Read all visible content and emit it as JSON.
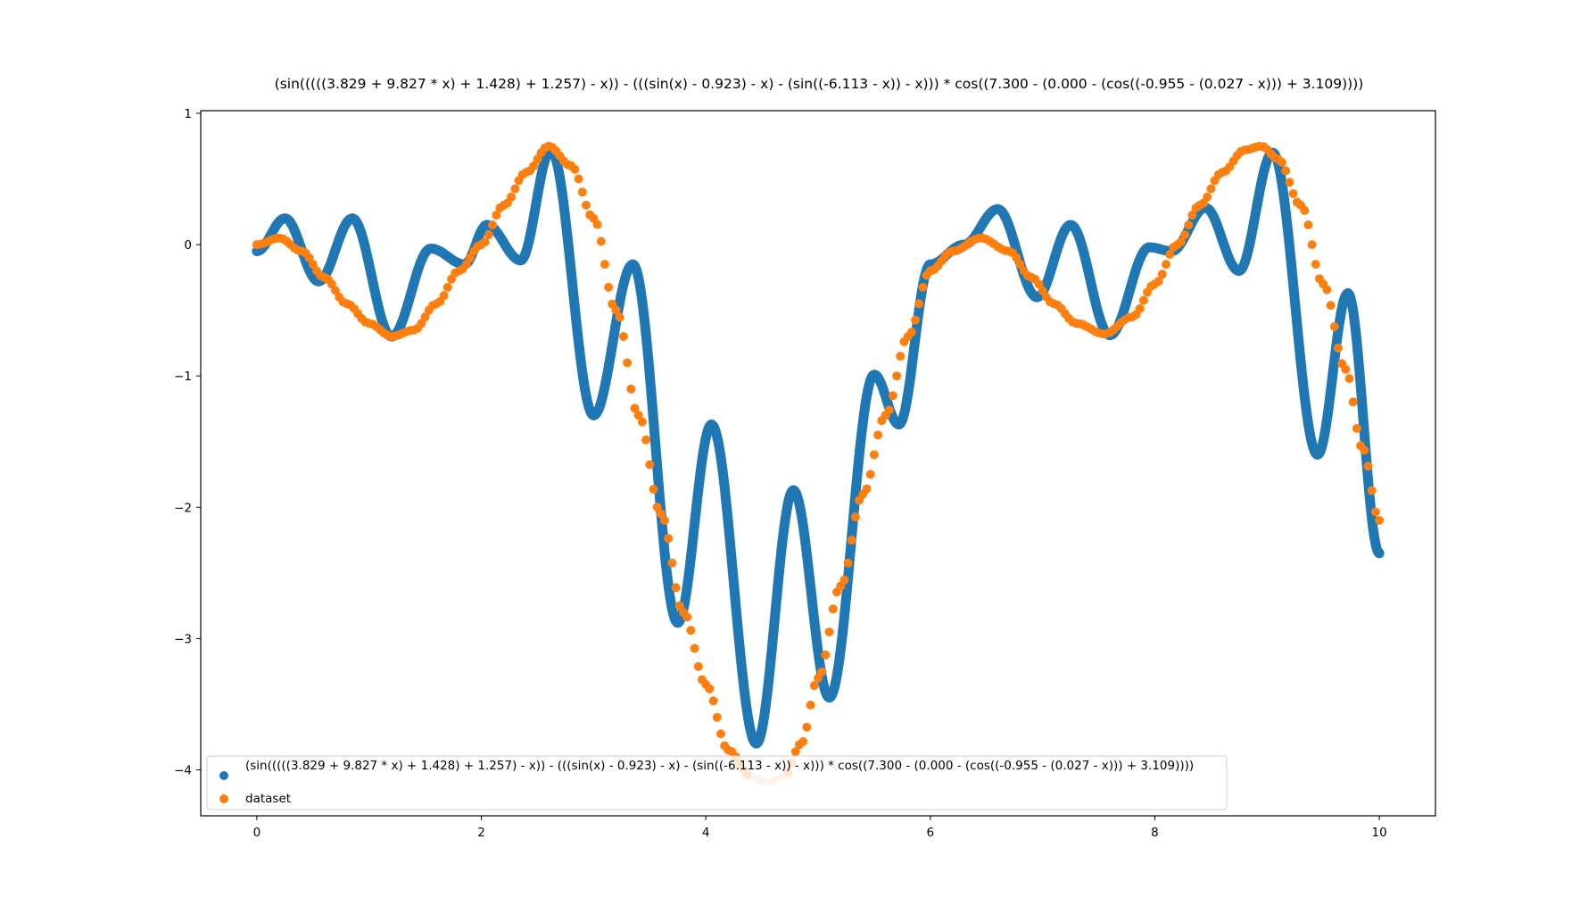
{
  "chart_data": {
    "type": "scatter",
    "title": "(sin(((((3.829 + 9.827 * x) + 1.428) + 1.257) - x)) - (((sin(x) - 0.923) - x) - (sin((-6.113 - x)) - x))) * cos((7.300 - (0.000 - (cos((-0.955 - (0.027 - x))) + 3.109))))",
    "xlabel": "",
    "ylabel": "",
    "xlim": [
      -0.5,
      10.5
    ],
    "ylim": [
      -4.35,
      1.02
    ],
    "x_ticks": [
      0,
      2,
      4,
      6,
      8,
      10
    ],
    "x_tick_labels": [
      "0",
      "2",
      "4",
      "6",
      "8",
      "10"
    ],
    "y_ticks": [
      1,
      0,
      -1,
      -2,
      -3,
      -4
    ],
    "y_tick_labels": [
      "1",
      "0",
      "−1",
      "−2",
      "−3",
      "−4"
    ],
    "grid": false,
    "legend_position": "lower-left",
    "series": [
      {
        "name": "(sin(((((3.829 + 9.827 * x) + 1.428) + 1.257) - x)) - (((sin(x) - 0.923) - x) - (sin((-6.113 - x)) - x))) * cos((7.300 - (0.000 - (cos((-0.955 - (0.027 - x))) + 3.109))))",
        "color": "#1f77b4",
        "x": [
          0.0,
          0.25,
          0.55,
          0.85,
          1.2,
          1.55,
          1.85,
          2.05,
          2.35,
          2.62,
          3.0,
          3.35,
          3.75,
          4.05,
          4.45,
          4.78,
          5.1,
          5.5,
          5.72,
          6.0,
          6.3,
          6.6,
          6.95,
          7.25,
          7.6,
          7.95,
          8.15,
          8.45,
          8.75,
          9.05,
          9.45,
          9.72,
          10.0
        ],
        "y": [
          -0.05,
          0.2,
          -0.28,
          0.2,
          -0.7,
          -0.03,
          -0.15,
          0.15,
          -0.12,
          0.72,
          -1.3,
          -0.15,
          -2.88,
          -1.37,
          -3.8,
          -1.87,
          -3.45,
          -0.99,
          -1.37,
          -0.15,
          0.0,
          0.27,
          -0.4,
          0.15,
          -0.69,
          -0.02,
          -0.05,
          0.28,
          -0.2,
          0.7,
          -1.6,
          -0.37,
          -2.35
        ]
      },
      {
        "name": "dataset",
        "color": "#ff7f0e",
        "x": [
          0.0,
          0.2,
          0.4,
          0.6,
          0.8,
          1.0,
          1.2,
          1.4,
          1.6,
          1.8,
          2.0,
          2.2,
          2.4,
          2.6,
          2.8,
          3.0,
          3.2,
          3.4,
          3.6,
          3.8,
          4.0,
          4.2,
          4.4,
          4.55,
          4.7,
          4.85,
          5.0,
          5.2,
          5.4,
          5.6,
          5.8,
          6.0,
          6.2,
          6.45,
          6.7,
          6.9,
          7.1,
          7.3,
          7.55,
          7.8,
          8.0,
          8.2,
          8.4,
          8.6,
          8.8,
          8.95,
          9.1,
          9.3,
          9.5,
          9.7,
          9.85,
          10.0
        ],
        "y": [
          0.0,
          0.05,
          -0.05,
          -0.25,
          -0.45,
          -0.6,
          -0.7,
          -0.65,
          -0.45,
          -0.2,
          0.0,
          0.3,
          0.55,
          0.75,
          0.6,
          0.2,
          -0.5,
          -1.3,
          -2.05,
          -2.8,
          -3.35,
          -3.85,
          -4.05,
          -4.1,
          -4.05,
          -3.8,
          -3.3,
          -2.6,
          -1.9,
          -1.3,
          -0.7,
          -0.2,
          -0.05,
          0.05,
          -0.05,
          -0.25,
          -0.45,
          -0.6,
          -0.68,
          -0.55,
          -0.3,
          0.0,
          0.3,
          0.55,
          0.72,
          0.75,
          0.65,
          0.3,
          -0.3,
          -0.95,
          -1.55,
          -2.1
        ]
      }
    ]
  }
}
